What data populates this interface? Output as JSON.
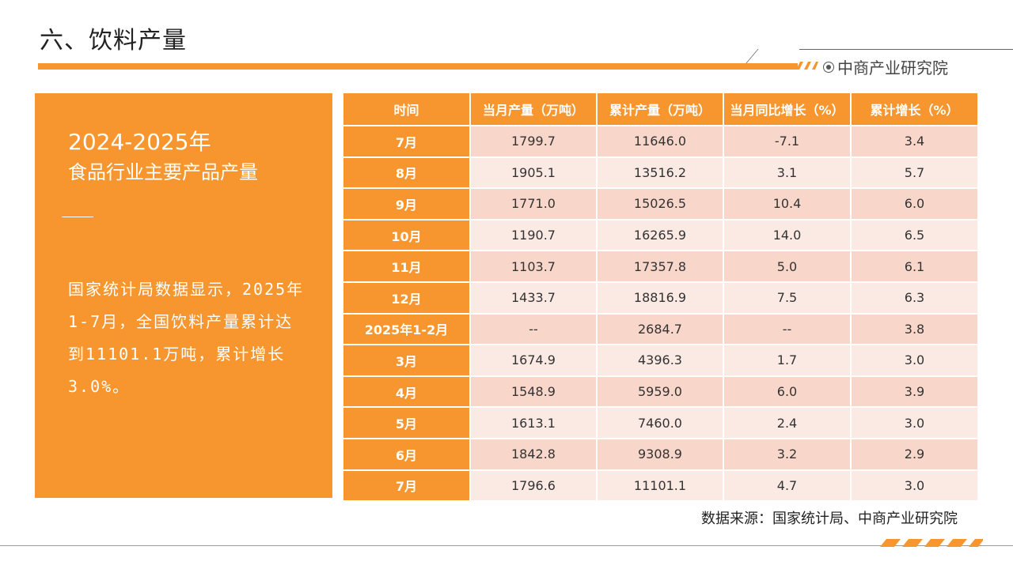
{
  "header": {
    "title": "六、饮料产量",
    "brand": "中商产业研究院"
  },
  "left_panel": {
    "year": "2024-2025年",
    "subtitle": "食品行业主要产品产量",
    "body": "国家统计局数据显示，2025年1-7月，全国饮料产量累计达到11101.1万吨，累计增长3.0%。"
  },
  "table": {
    "headers": [
      "时间",
      "当月产量（万吨）",
      "累计产量（万吨）",
      "当月同比增长（%）",
      "累计增长（%）"
    ],
    "rows": [
      [
        "7月",
        "1799.7",
        "11646.0",
        "-7.1",
        "3.4"
      ],
      [
        "8月",
        "1905.1",
        "13516.2",
        "3.1",
        "5.7"
      ],
      [
        "9月",
        "1771.0",
        "15026.5",
        "10.4",
        "6.0"
      ],
      [
        "10月",
        "1190.7",
        "16265.9",
        "14.0",
        "6.5"
      ],
      [
        "11月",
        "1103.7",
        "17357.8",
        "5.0",
        "6.1"
      ],
      [
        "12月",
        "1433.7",
        "18816.9",
        "7.5",
        "6.3"
      ],
      [
        "2025年1-2月",
        "--",
        "2684.7",
        "--",
        "3.8"
      ],
      [
        "3月",
        "1674.9",
        "4396.3",
        "1.7",
        "3.0"
      ],
      [
        "4月",
        "1548.9",
        "5959.0",
        "6.0",
        "3.9"
      ],
      [
        "5月",
        "1613.1",
        "7460.0",
        "2.4",
        "3.0"
      ],
      [
        "6月",
        "1842.8",
        "9308.9",
        "3.2",
        "2.9"
      ],
      [
        "7月",
        "1796.6",
        "11101.1",
        "4.7",
        "3.0"
      ]
    ]
  },
  "footer": {
    "source": "数据来源：国家统计局、中商产业研究院"
  },
  "colors": {
    "accent": "#f7962f",
    "row_odd": "#f8d6c9",
    "row_even": "#fbe9e3"
  }
}
